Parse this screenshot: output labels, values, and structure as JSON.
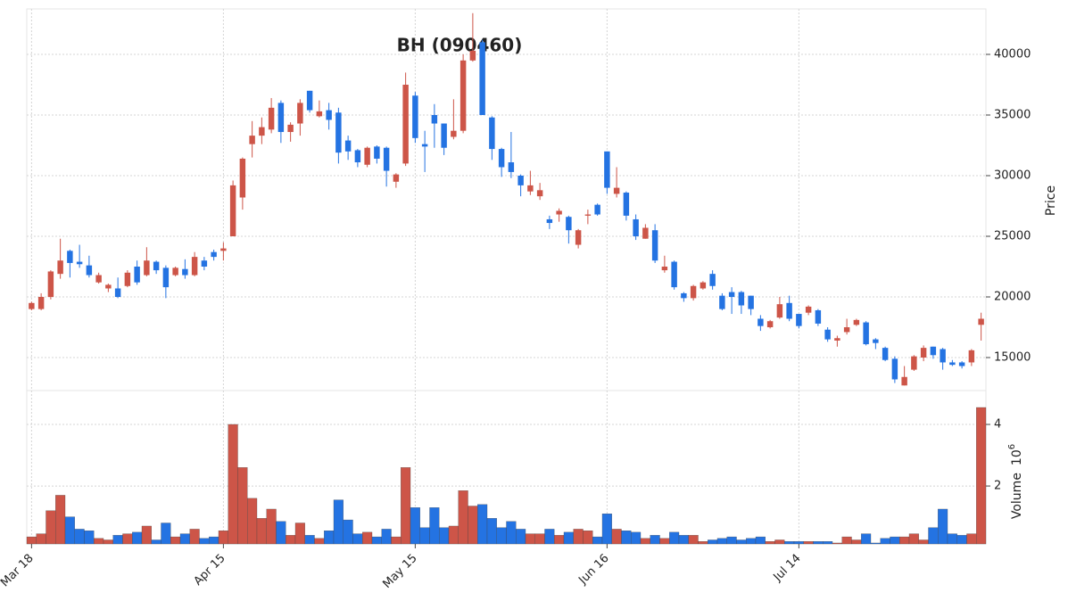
{
  "chart_data": {
    "type": "candlestick",
    "title": "BH (090460)",
    "y_label": "Price",
    "categories": [
      "Mar 18",
      null,
      null,
      null,
      null,
      null,
      null,
      null,
      null,
      null,
      null,
      null,
      null,
      null,
      null,
      null,
      null,
      null,
      null,
      null,
      "Apr 15",
      null,
      null,
      null,
      null,
      null,
      null,
      null,
      null,
      null,
      null,
      null,
      null,
      null,
      null,
      null,
      null,
      null,
      null,
      null,
      "May 15",
      null,
      null,
      null,
      null,
      null,
      null,
      null,
      null,
      null,
      null,
      null,
      null,
      null,
      null,
      null,
      null,
      null,
      null,
      null,
      "Jun 16",
      null,
      null,
      null,
      null,
      null,
      null,
      null,
      null,
      null,
      null,
      null,
      null,
      null,
      null,
      null,
      null,
      null,
      null,
      null,
      "Jul 14",
      null,
      null,
      null,
      null,
      null,
      null,
      null,
      null,
      null,
      null,
      null,
      null,
      null,
      null,
      null,
      null,
      null,
      null,
      null
    ],
    "open": [
      19000,
      19000,
      20000,
      21900,
      23800,
      22900,
      22600,
      21200,
      20700,
      20700,
      20900,
      22500,
      21800,
      22900,
      22400,
      21800,
      22300,
      21800,
      23000,
      23700,
      23800,
      25000,
      28200,
      32600,
      33300,
      33800,
      36000,
      33600,
      34300,
      37000,
      34900,
      35400,
      35200,
      32900,
      32100,
      30900,
      32400,
      32300,
      29500,
      31000,
      36600,
      32600,
      35000,
      34300,
      33200,
      33700,
      39500,
      41000,
      34800,
      32200,
      31100,
      30000,
      28700,
      28300,
      26400,
      26800,
      26600,
      24300,
      26700,
      27600,
      32000,
      28500,
      28600,
      26400,
      24800,
      25500,
      22200,
      22900,
      20300,
      19900,
      20700,
      21900,
      20100,
      20400,
      20400,
      20100,
      18200,
      17500,
      18300,
      19500,
      18600,
      18700,
      18900,
      17300,
      16400,
      17100,
      17700,
      17900,
      16500,
      15800,
      14900,
      12700,
      14000,
      15000,
      15900,
      15700,
      14600,
      14600,
      14600,
      17700
    ],
    "high": [
      19600,
      20300,
      22200,
      24800,
      23900,
      24300,
      23400,
      22000,
      21100,
      21600,
      22200,
      23000,
      24100,
      23000,
      22600,
      22500,
      23100,
      23700,
      23300,
      23900,
      24500,
      29600,
      31500,
      34500,
      34800,
      36400,
      36200,
      34400,
      36300,
      37000,
      36200,
      36000,
      35600,
      33300,
      32200,
      32400,
      32500,
      32400,
      30200,
      38500,
      36900,
      33700,
      35900,
      34300,
      36300,
      40000,
      43400,
      41200,
      34900,
      32300,
      33600,
      30100,
      30400,
      29400,
      26700,
      27300,
      26700,
      25600,
      27200,
      27700,
      32000,
      30700,
      28700,
      26800,
      26000,
      26000,
      23400,
      23000,
      20400,
      21000,
      21300,
      22200,
      20300,
      20800,
      20500,
      20100,
      18500,
      18100,
      20000,
      20100,
      18600,
      19300,
      19000,
      17500,
      16800,
      18200,
      18200,
      18000,
      16600,
      15900,
      15100,
      14300,
      15200,
      16000,
      15900,
      15800,
      14800,
      14700,
      15700,
      18700
    ],
    "low": [
      18900,
      18900,
      19800,
      21500,
      21600,
      22400,
      21600,
      21100,
      20400,
      19900,
      20800,
      21000,
      21700,
      21900,
      19900,
      21700,
      21500,
      21700,
      22200,
      23000,
      23000,
      25000,
      27200,
      31500,
      32600,
      33500,
      32700,
      32800,
      33300,
      35200,
      34800,
      33800,
      31000,
      31300,
      30700,
      30700,
      31000,
      29100,
      29000,
      30800,
      32700,
      30300,
      32300,
      31700,
      33000,
      33500,
      39400,
      35000,
      31300,
      29900,
      29800,
      28300,
      28400,
      28000,
      25600,
      26200,
      24400,
      24000,
      26000,
      26700,
      28500,
      28200,
      26300,
      24700,
      24800,
      22800,
      22000,
      20600,
      19600,
      19700,
      20600,
      20600,
      18900,
      18600,
      18600,
      18500,
      17200,
      17400,
      18200,
      18000,
      17400,
      18500,
      17600,
      16300,
      15900,
      16900,
      17600,
      16000,
      15700,
      14700,
      12900,
      12700,
      13900,
      14700,
      14900,
      14000,
      14300,
      14100,
      14300,
      16400
    ],
    "close": [
      19500,
      20000,
      22100,
      23000,
      22800,
      22700,
      21800,
      21800,
      21000,
      20000,
      22000,
      21200,
      23000,
      22200,
      20800,
      22400,
      21800,
      23300,
      22500,
      23300,
      24000,
      29200,
      31400,
      33300,
      34000,
      35600,
      33600,
      34200,
      36000,
      35400,
      35300,
      34600,
      31900,
      32000,
      31100,
      32300,
      31400,
      30400,
      30100,
      37500,
      33100,
      32400,
      34300,
      32300,
      33700,
      39500,
      40300,
      35000,
      32200,
      30700,
      30300,
      29200,
      29200,
      28800,
      26100,
      27100,
      25500,
      25500,
      26800,
      26800,
      29000,
      29000,
      26700,
      25000,
      25700,
      23000,
      22500,
      20800,
      19900,
      20900,
      21200,
      20900,
      19000,
      20000,
      19300,
      19000,
      17600,
      18000,
      19400,
      18200,
      17600,
      19200,
      17800,
      16500,
      16600,
      17500,
      18100,
      16100,
      16200,
      14800,
      13200,
      13400,
      15100,
      15800,
      15200,
      14600,
      14400,
      14300,
      15600,
      18200
    ],
    "ylim": [
      12280,
      43750
    ],
    "yticks": [
      15000,
      20000,
      25000,
      30000,
      35000,
      40000
    ],
    "up_color": "#cd5548",
    "down_color": "#2473e2",
    "grid": true,
    "volume": {
      "label": "Volume",
      "multiplier_base": "10",
      "multiplier_exponent": "6",
      "values": [
        0.35,
        0.45,
        1.2,
        1.7,
        1.0,
        0.6,
        0.55,
        0.3,
        0.25,
        0.4,
        0.45,
        0.5,
        0.7,
        0.25,
        0.8,
        0.35,
        0.45,
        0.6,
        0.3,
        0.35,
        0.55,
        4.0,
        2.6,
        1.6,
        0.95,
        1.25,
        0.85,
        0.4,
        0.8,
        0.4,
        0.3,
        0.55,
        1.55,
        0.9,
        0.45,
        0.5,
        0.35,
        0.6,
        0.35,
        2.6,
        1.3,
        0.65,
        1.3,
        0.65,
        0.7,
        1.85,
        1.35,
        1.4,
        0.95,
        0.65,
        0.85,
        0.6,
        0.45,
        0.45,
        0.6,
        0.4,
        0.5,
        0.6,
        0.55,
        0.35,
        1.1,
        0.6,
        0.55,
        0.5,
        0.3,
        0.4,
        0.3,
        0.5,
        0.4,
        0.4,
        0.2,
        0.25,
        0.3,
        0.35,
        0.25,
        0.3,
        0.35,
        0.2,
        0.25,
        0.2,
        0.2,
        0.2,
        0.2,
        0.2,
        0.15,
        0.35,
        0.25,
        0.45,
        0.15,
        0.3,
        0.35,
        0.35,
        0.45,
        0.25,
        0.65,
        1.25,
        0.45,
        0.4,
        0.45,
        4.55
      ],
      "ylim": [
        0.12,
        5.1
      ],
      "yticks": [
        2,
        4
      ]
    }
  }
}
